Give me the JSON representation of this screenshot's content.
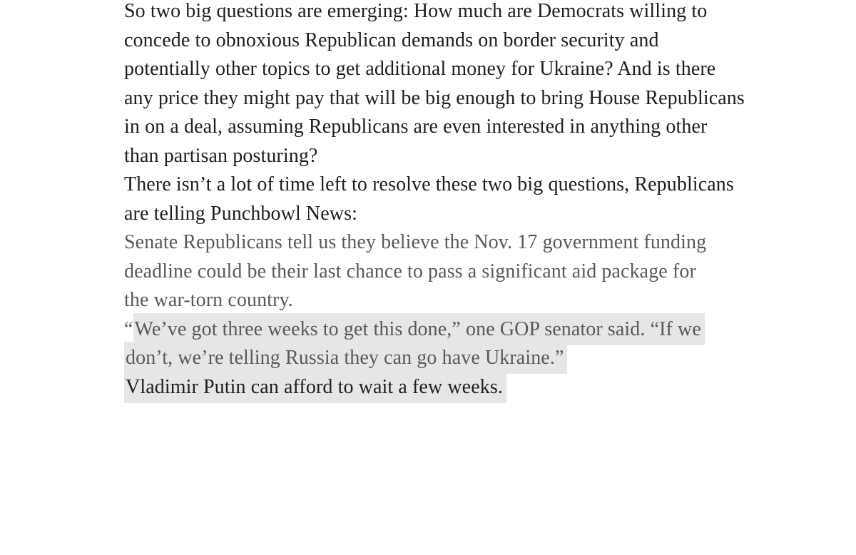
{
  "colors": {
    "page_background": "#ffffff",
    "body_text": "#1e1e1e",
    "quote_text": "#565a5e",
    "highlight_bg": "#e6e6e6"
  },
  "article": {
    "blocks": [
      {
        "type": "body",
        "name": "intro-paragraph",
        "lines": [
          [
            {
              "t": "So two big questions are emerging: How much are Democrats willing to"
            }
          ],
          [
            {
              "t": "concede to obnoxious Republican demands on border security and"
            }
          ],
          [
            {
              "t": "potentially other topics to get additional money for Ukraine? And is there"
            }
          ],
          [
            {
              "t": "any price they might pay that will be big enough to bring House Republicans"
            }
          ],
          [
            {
              "t": "in on a deal, assuming Republicans are even interested in anything other"
            }
          ],
          [
            {
              "t": "than partisan posturing?"
            }
          ]
        ]
      },
      {
        "type": "body",
        "name": "time-paragraph",
        "lines": [
          [
            {
              "t": "There isn’t a lot of time left to resolve these two big questions, Republicans"
            }
          ],
          [
            {
              "t": "are telling Punchbowl News:"
            }
          ]
        ]
      },
      {
        "type": "quote",
        "name": "quote-paragraph-1",
        "lines": [
          [
            {
              "t": "Senate Republicans tell us they believe the Nov. 17 government funding"
            }
          ],
          [
            {
              "t": "deadline could be their last chance to pass a significant aid package for"
            }
          ],
          [
            {
              "t": "the war-torn country."
            }
          ]
        ]
      },
      {
        "type": "quote",
        "name": "quote-paragraph-2",
        "lines": [
          [
            {
              "t": "“"
            },
            {
              "t": "We’ve got three weeks to get this done,” one GOP senator said. “If we",
              "hl": true
            }
          ],
          [
            {
              "t": "don’t, we’re telling Russia they can go have Ukraine.”",
              "hl": true
            }
          ]
        ]
      },
      {
        "type": "body",
        "name": "closing-paragraph",
        "lines": [
          [
            {
              "t": "Vladimir Putin can afford to wait a few weeks.",
              "hl": true
            }
          ]
        ]
      }
    ]
  }
}
